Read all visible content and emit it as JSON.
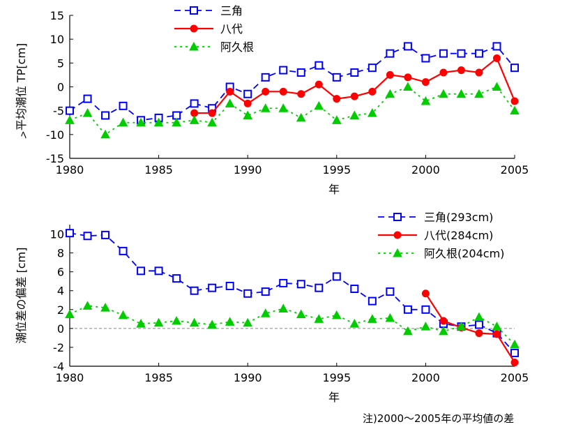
{
  "chart_data": [
    {
      "type": "line",
      "ylabel": "平均潮位 TP[cm]",
      "ylabel_extra": "ﾍ",
      "xlabel": "年",
      "xlim": [
        1980,
        2005
      ],
      "ylim": [
        -15,
        15
      ],
      "xticks": [
        1980,
        1985,
        1990,
        1995,
        2000,
        2005
      ],
      "yticks": [
        15,
        10,
        5,
        0,
        -5,
        -10,
        -15
      ],
      "grid": false,
      "legend_position": "top-center",
      "series": [
        {
          "name": "三角",
          "color": "#0000ff",
          "marker": "square",
          "dash": "dashed",
          "x": [
            1980,
            1981,
            1982,
            1983,
            1984,
            1985,
            1986,
            1987,
            1988,
            1989,
            1990,
            1991,
            1992,
            1993,
            1994,
            1995,
            1996,
            1997,
            1998,
            1999,
            2000,
            2001,
            2002,
            2003,
            2004,
            2005
          ],
          "y": [
            -5,
            -2.5,
            -6,
            -4,
            -7,
            -6.5,
            -6,
            -3.5,
            -4.5,
            0,
            -1.5,
            2,
            3.5,
            3,
            4.5,
            2,
            3,
            4,
            7,
            8.5,
            6,
            7,
            7,
            7,
            8.5,
            4
          ]
        },
        {
          "name": "八代",
          "color": "#ff0000",
          "marker": "circle",
          "dash": "solid",
          "x": [
            1987,
            1988,
            1989,
            1990,
            1991,
            1992,
            1993,
            1994,
            1995,
            1996,
            1997,
            1998,
            1999,
            2000,
            2001,
            2002,
            2003,
            2004,
            2005
          ],
          "y": [
            -5.5,
            -5.5,
            -1,
            -3.5,
            -1,
            -1,
            -1.5,
            0.5,
            -2.5,
            -2,
            -1,
            2.5,
            2,
            1,
            3,
            3.5,
            3,
            6,
            -3
          ]
        },
        {
          "name": "阿久根",
          "color": "#00cc00",
          "marker": "triangle",
          "dash": "dotted",
          "x": [
            1980,
            1981,
            1982,
            1983,
            1984,
            1985,
            1986,
            1987,
            1988,
            1989,
            1990,
            1991,
            1992,
            1993,
            1994,
            1995,
            1996,
            1997,
            1998,
            1999,
            2000,
            2001,
            2002,
            2003,
            2004,
            2005
          ],
          "y": [
            -7,
            -5.5,
            -10,
            -7.5,
            -7.5,
            -7.5,
            -7.5,
            -7,
            -7.5,
            -3.5,
            -6,
            -4.5,
            -4.5,
            -6.5,
            -4,
            -7,
            -6,
            -5.5,
            -1.5,
            0,
            -3,
            -1.5,
            -1.5,
            -1.5,
            0,
            -5
          ]
        }
      ]
    },
    {
      "type": "line",
      "ylabel": "潮位差の偏差 [cm]",
      "xlabel": "年",
      "xlim": [
        1980,
        2005
      ],
      "ylim": [
        -4,
        11
      ],
      "xticks": [
        1980,
        1985,
        1990,
        1995,
        2000,
        2005
      ],
      "yticks": [
        10,
        8,
        6,
        4,
        2,
        0,
        -2,
        -4
      ],
      "grid": false,
      "zero_line": true,
      "legend_position": "top-right",
      "series": [
        {
          "name": "三角(293cm)",
          "color": "#0000ff",
          "marker": "square",
          "dash": "dashed",
          "x": [
            1980,
            1981,
            1982,
            1983,
            1984,
            1985,
            1986,
            1987,
            1988,
            1989,
            1990,
            1991,
            1992,
            1993,
            1994,
            1995,
            1996,
            1997,
            1998,
            1999,
            2000,
            2001,
            2002,
            2003,
            2004,
            2005
          ],
          "y": [
            10.1,
            9.8,
            9.9,
            8.2,
            6.1,
            6.1,
            5.3,
            4,
            4.3,
            4.5,
            3.7,
            3.9,
            4.8,
            4.7,
            4.3,
            5.5,
            4.2,
            2.9,
            3.9,
            2,
            2,
            0.5,
            0.2,
            0.4,
            -0.5,
            -2.6
          ]
        },
        {
          "name": "八代(284cm)",
          "color": "#ff0000",
          "marker": "circle",
          "dash": "solid",
          "x": [
            2000,
            2001,
            2002,
            2003,
            2004,
            2005
          ],
          "y": [
            3.7,
            0.8,
            0.1,
            -0.5,
            -0.6,
            -3.6
          ]
        },
        {
          "name": "阿久根(204cm)",
          "color": "#00cc00",
          "marker": "triangle",
          "dash": "dotted",
          "x": [
            1980,
            1981,
            1982,
            1983,
            1984,
            1985,
            1986,
            1987,
            1988,
            1989,
            1990,
            1991,
            1992,
            1993,
            1994,
            1995,
            1996,
            1997,
            1998,
            1999,
            2000,
            2001,
            2002,
            2003,
            2004,
            2005
          ],
          "y": [
            1.5,
            2.4,
            2.2,
            1.4,
            0.5,
            0.6,
            0.8,
            0.6,
            0.4,
            0.7,
            0.6,
            1.6,
            2.1,
            1.5,
            1.0,
            1.4,
            0.5,
            1.0,
            1.1,
            -0.3,
            0.2,
            -0.3,
            0.2,
            1.2,
            0.2,
            -1.7
          ]
        }
      ]
    }
  ],
  "note": "注)2000～2005年の平均値の差"
}
